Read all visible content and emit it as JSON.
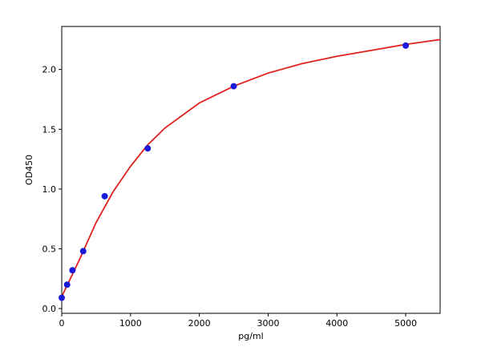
{
  "chart_data": {
    "type": "scatter",
    "x_label": "pg/ml",
    "y_label": "OD450",
    "xlim": [
      0,
      5500
    ],
    "xticks": [
      0,
      1000,
      2000,
      3000,
      4000,
      5000
    ],
    "ylim": [
      -0.04,
      2.36
    ],
    "yticks": [
      {
        "value": 0,
        "label": "0.0"
      },
      0.5,
      {
        "value": 1,
        "label": "1.0"
      },
      1.5,
      {
        "value": 2,
        "label": "2.0"
      }
    ],
    "grid": false,
    "series": [
      {
        "mode": "line",
        "color": "#e0201c",
        "x": [
          0,
          250,
          500,
          750,
          1000,
          1250,
          1500,
          2000,
          2500,
          3000,
          3500,
          4000,
          4500,
          5000,
          5500
        ],
        "values": [
          0.1,
          0.4,
          0.72,
          0.98,
          1.19,
          1.37,
          1.51,
          1.72,
          1.86,
          1.97,
          2.05,
          2.11,
          2.16,
          2.21,
          2.25
        ]
      },
      {
        "mode": "markers",
        "color": "#1a1adb",
        "x": [
          0,
          78,
          156,
          312,
          625,
          1250,
          2500,
          5000
        ],
        "values": [
          0.09,
          0.2,
          0.32,
          0.48,
          0.94,
          1.34,
          1.86,
          2.2
        ]
      }
    ]
  }
}
